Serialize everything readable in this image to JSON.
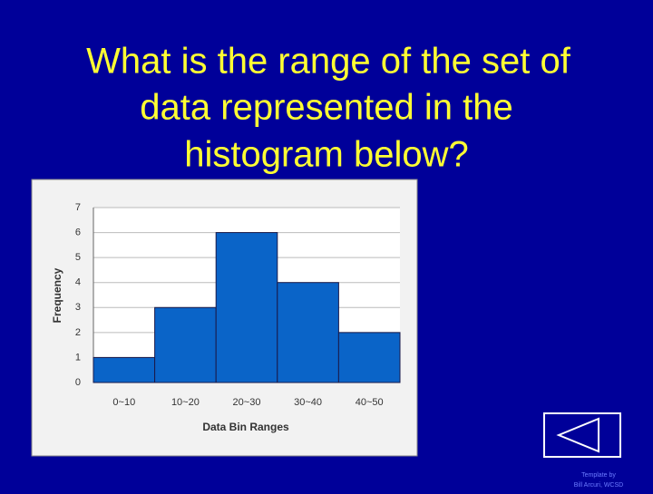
{
  "slide": {
    "question_lines": [
      "What is the range of the set of",
      "data represented in the",
      "histogram below?"
    ],
    "credit_lines": [
      "Template by",
      "Bill Arcuri, WCSD"
    ]
  },
  "chart_data": {
    "type": "bar",
    "categories": [
      "0~10",
      "10~20",
      "20~30",
      "30~40",
      "40~50"
    ],
    "values": [
      1,
      3,
      6,
      4,
      2
    ],
    "color": "#0a64c8",
    "x_label": "Data Bin Ranges",
    "y_label": "Frequency",
    "ylim": [
      0,
      7
    ],
    "yticks": [
      0,
      1,
      2,
      3,
      4,
      5,
      6,
      7
    ],
    "grid": true
  }
}
